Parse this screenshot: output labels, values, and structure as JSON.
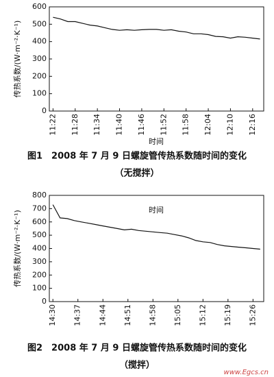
{
  "chart_data": [
    {
      "type": "line",
      "title": "图1　2008 年 7 月 9 日螺旋管传热系数随时间的变化",
      "subtitle": "（无搅拌）",
      "x_label": "时间",
      "y_label": "传热系数/(W·m⁻²·K⁻¹)",
      "x": [
        "11:22",
        "11:24",
        "11:26",
        "11:28",
        "11:30",
        "11:32",
        "11:34",
        "11:36",
        "11:38",
        "11:40",
        "11:42",
        "11:44",
        "11:46",
        "11:48",
        "11:50",
        "11:52",
        "11:54",
        "11:56",
        "11:58",
        "12:00",
        "12:02",
        "12:04",
        "12:06",
        "12:08",
        "12:10",
        "12:12",
        "12:14",
        "12:16",
        "12:18"
      ],
      "series": [
        {
          "color": "#111111",
          "values": [
            540,
            530,
            515,
            515,
            505,
            495,
            490,
            480,
            470,
            465,
            468,
            465,
            468,
            470,
            470,
            465,
            468,
            460,
            455,
            445,
            445,
            440,
            430,
            428,
            420,
            428,
            425,
            420,
            415
          ]
        }
      ],
      "xlim": [
        "11:21",
        "12:19"
      ],
      "xticks": [
        "11:22",
        "11:28",
        "11:34",
        "11:40",
        "11:46",
        "11:52",
        "11:58",
        "12:04",
        "12:10",
        "12:16"
      ],
      "ylim": [
        0,
        600
      ],
      "yticks": [
        0,
        100,
        200,
        300,
        400,
        500,
        600
      ]
    },
    {
      "type": "line",
      "title": "图2　2008 年 7 月 9 日螺旋管传热系数随时间的变化",
      "subtitle": "（搅拌）",
      "x_label": "时间",
      "y_label": "传热系数/(W·m⁻²·K⁻¹)",
      "x": [
        "14:30",
        "14:32",
        "14:34",
        "14:36",
        "14:38",
        "14:40",
        "14:42",
        "14:44",
        "14:46",
        "14:48",
        "14:50",
        "14:52",
        "14:54",
        "14:56",
        "14:58",
        "15:00",
        "15:02",
        "15:04",
        "15:06",
        "15:08",
        "15:10",
        "15:12",
        "15:14",
        "15:16",
        "15:18",
        "15:20",
        "15:22",
        "15:24",
        "15:26",
        "15:28"
      ],
      "series": [
        {
          "color": "#111111",
          "values": [
            730,
            630,
            625,
            610,
            600,
            590,
            580,
            570,
            560,
            550,
            540,
            545,
            535,
            530,
            525,
            520,
            515,
            505,
            495,
            480,
            460,
            450,
            445,
            430,
            420,
            415,
            410,
            405,
            400,
            395
          ]
        }
      ],
      "xlim": [
        "14:29",
        "15:29"
      ],
      "xticks": [
        "14:30",
        "14:37",
        "14:44",
        "14:51",
        "14:58",
        "15:05",
        "15:12",
        "15:19",
        "15:26"
      ],
      "ylim": [
        0,
        800
      ],
      "yticks": [
        0,
        100,
        200,
        300,
        400,
        500,
        600,
        700,
        800
      ]
    }
  ],
  "watermark": "www.Egcs.cn"
}
